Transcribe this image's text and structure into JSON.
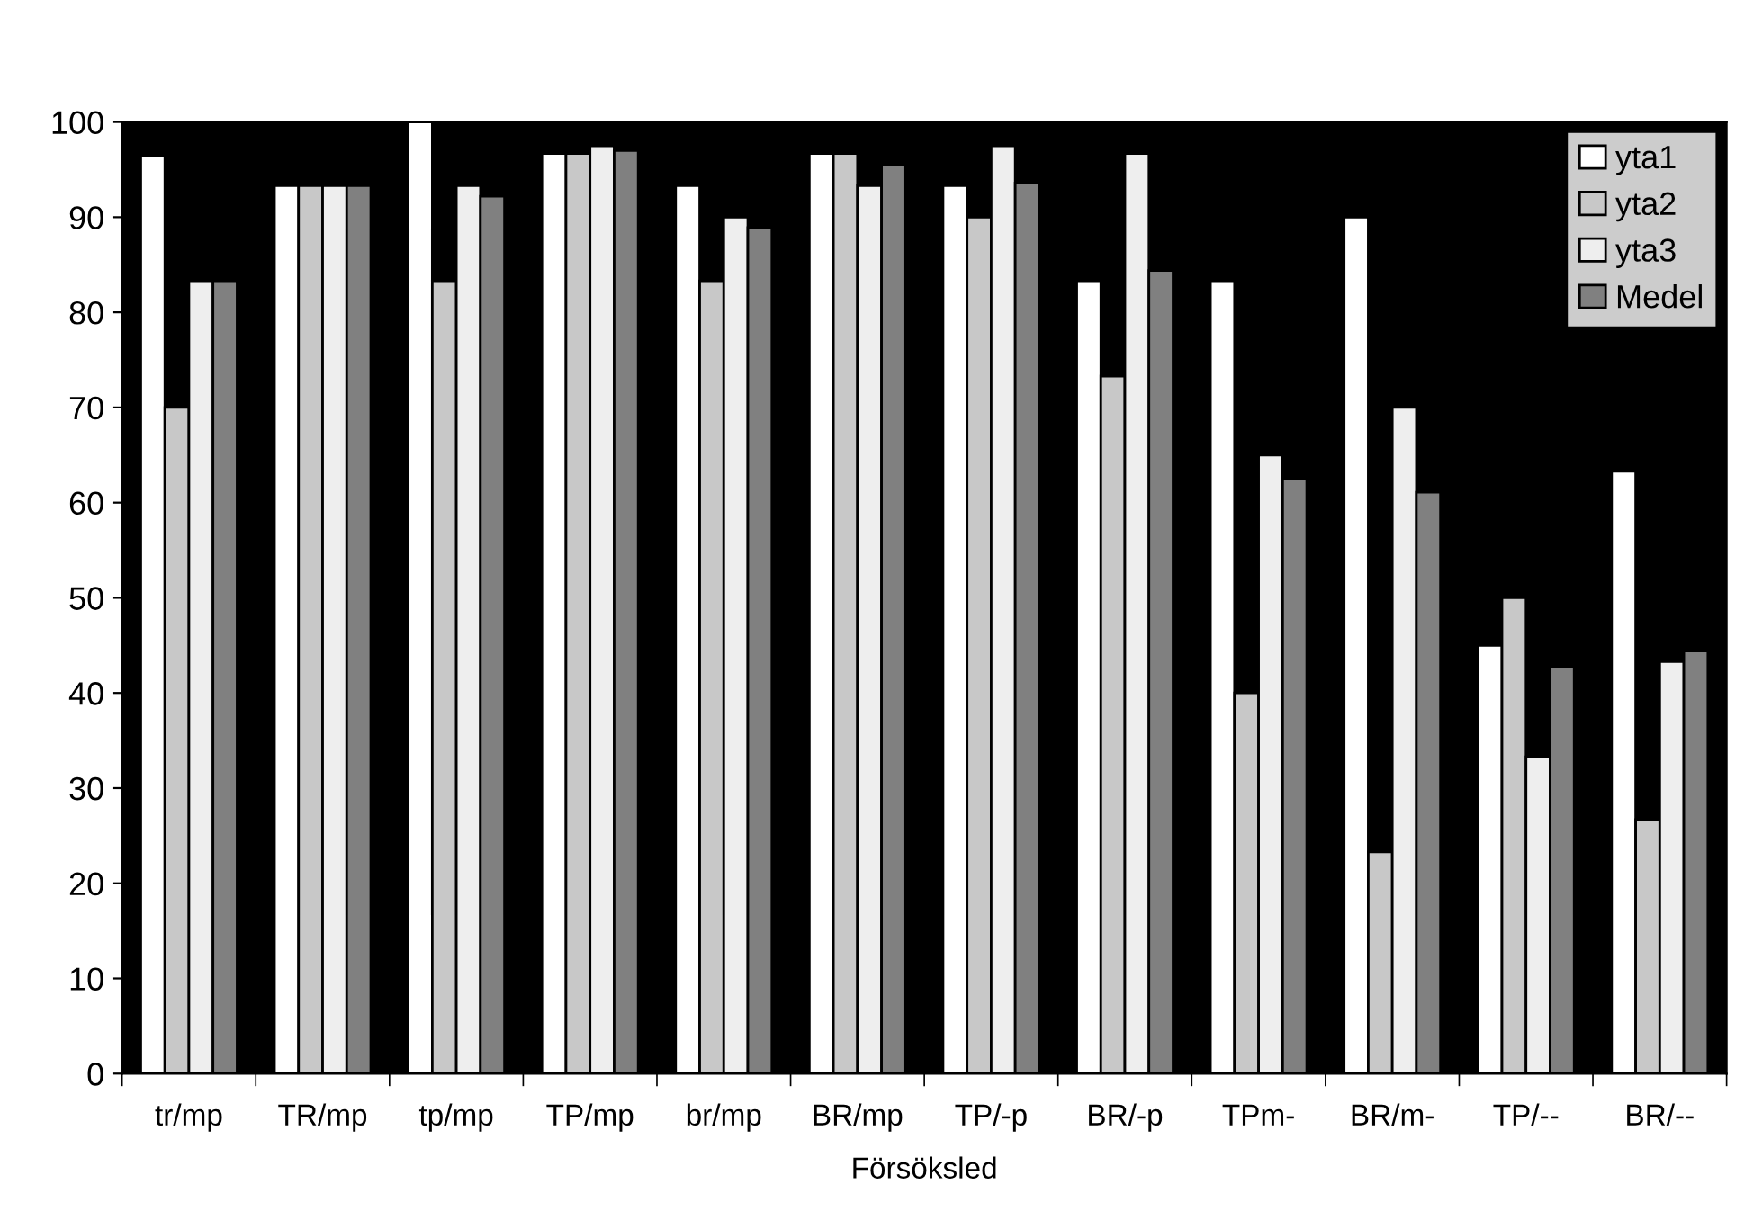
{
  "chart_data": {
    "type": "bar",
    "xlabel": "Försöksled",
    "categories": [
      "tr/mp",
      "TR/mp",
      "tp/mp",
      "TP/mp",
      "br/mp",
      "BR/mp",
      "TP/-p",
      "BR/-p",
      "TPm-",
      "BR/m-",
      "TP/--",
      "BR/--"
    ],
    "series": [
      {
        "name": "yta1",
        "color": "#ffffff",
        "values": [
          96.5,
          93.3,
          100,
          96.7,
          93.3,
          96.7,
          93.3,
          83.3,
          83.3,
          90,
          45,
          63.3
        ]
      },
      {
        "name": "yta2",
        "color": "#c8c8c8",
        "values": [
          70,
          93.3,
          83.3,
          96.7,
          83.3,
          96.7,
          90,
          73.3,
          40,
          23.3,
          50,
          26.7
        ]
      },
      {
        "name": "yta3",
        "color": "#eeeeee",
        "values": [
          83.3,
          93.3,
          93.3,
          97.5,
          90,
          93.3,
          97.5,
          96.7,
          65,
          70,
          33.3,
          43.3
        ]
      },
      {
        "name": "Medel",
        "color": "#808080",
        "values": [
          83.3,
          93.3,
          92.2,
          97,
          88.9,
          95.5,
          93.6,
          84.4,
          62.5,
          61.1,
          42.8,
          44.4
        ]
      }
    ],
    "ylim": [
      0,
      100
    ],
    "yticks": [
      0,
      10,
      20,
      30,
      40,
      50,
      60,
      70,
      80,
      90,
      100
    ],
    "grid": false,
    "legend": "top right"
  }
}
